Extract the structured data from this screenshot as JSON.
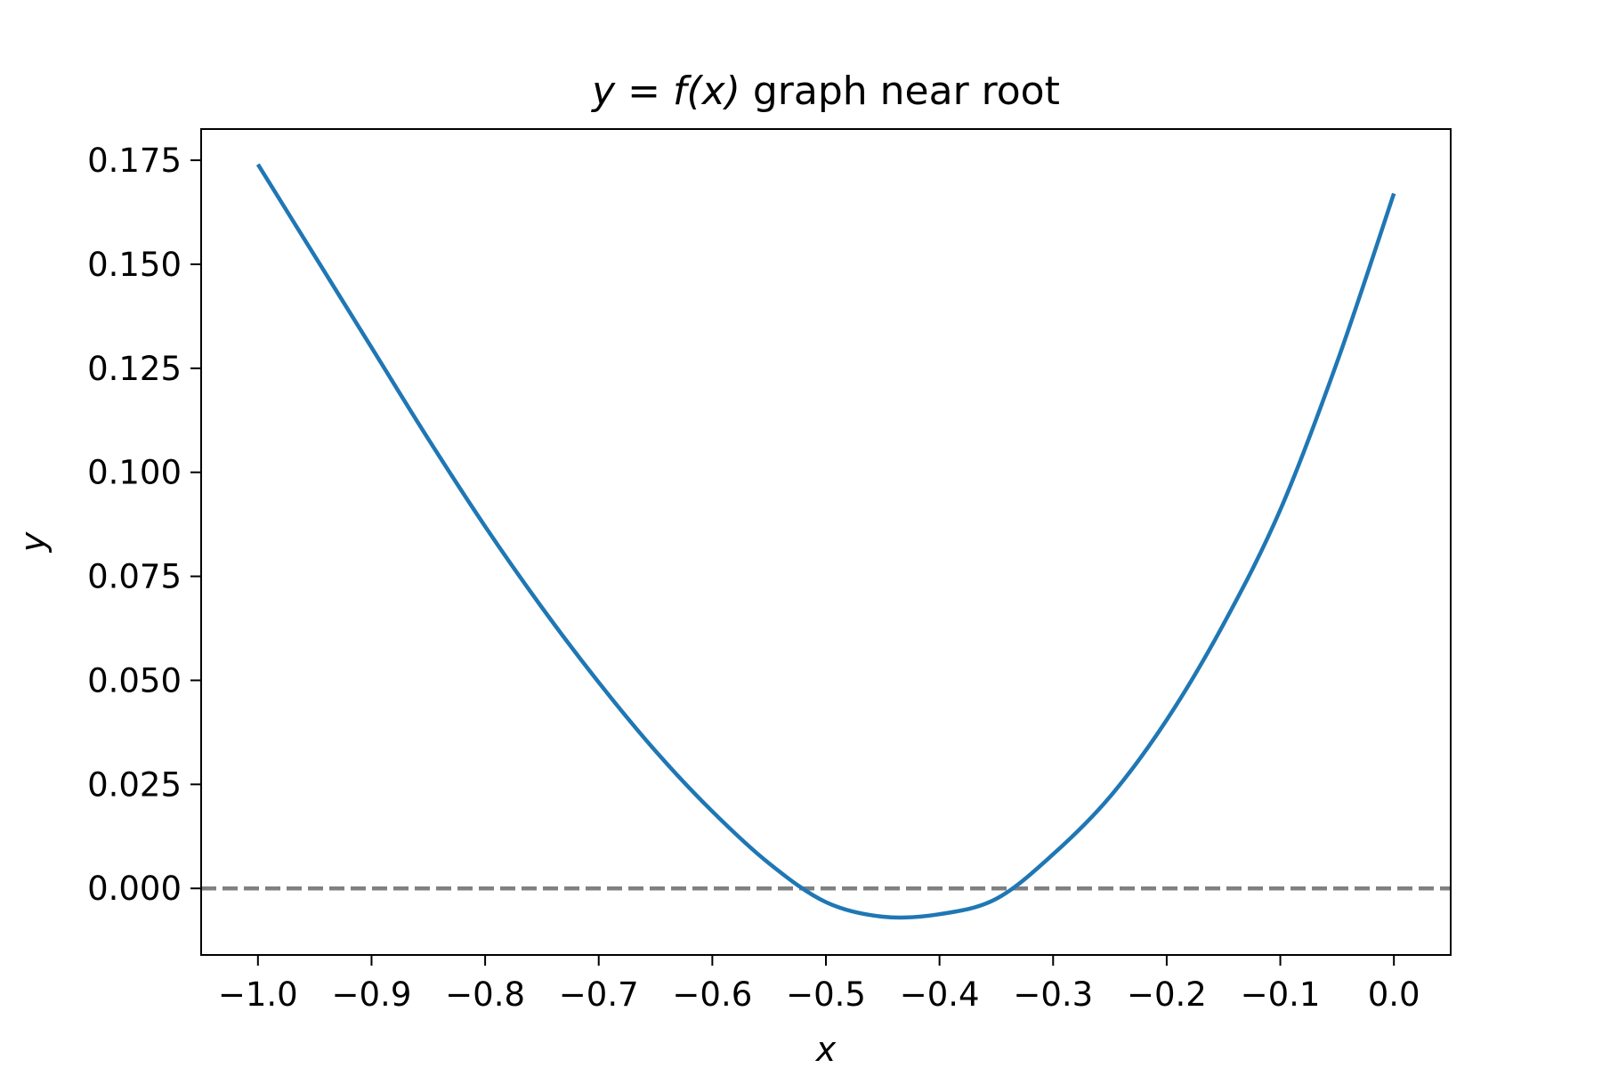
{
  "chart_data": {
    "type": "line",
    "title_math": "y = f(x)",
    "title_text": " graph near root",
    "xlabel": "x",
    "ylabel": "y",
    "xlim": [
      -1.05,
      0.05
    ],
    "ylim": [
      -0.016,
      0.1825
    ],
    "x_ticks": [
      -1.0,
      -0.9,
      -0.8,
      -0.7,
      -0.6,
      -0.5,
      -0.4,
      -0.3,
      -0.2,
      -0.1,
      0.0
    ],
    "x_tick_labels": [
      "−1.0",
      "−0.9",
      "−0.8",
      "−0.7",
      "−0.6",
      "−0.5",
      "−0.4",
      "−0.3",
      "−0.2",
      "−0.1",
      "0.0"
    ],
    "y_ticks": [
      0.0,
      0.025,
      0.05,
      0.075,
      0.1,
      0.125,
      0.15,
      0.175
    ],
    "y_tick_labels": [
      "0.000",
      "0.025",
      "0.050",
      "0.075",
      "0.100",
      "0.125",
      "0.150",
      "0.175"
    ],
    "grid": false,
    "series": [
      {
        "color": "#1f77b4",
        "x": [
          -1.0,
          -0.95,
          -0.9,
          -0.85,
          -0.8,
          -0.75,
          -0.7,
          -0.65,
          -0.6,
          -0.55,
          -0.5,
          -0.45,
          -0.4,
          -0.35,
          -0.3,
          -0.25,
          -0.2,
          -0.15,
          -0.1,
          -0.05,
          0.0
        ],
        "y": [
          0.174,
          0.152,
          0.13,
          0.108,
          0.087,
          0.0675,
          0.0495,
          0.033,
          0.0185,
          0.006,
          -0.0033,
          -0.0068,
          -0.0062,
          -0.0025,
          0.0082,
          0.022,
          0.0405,
          0.0635,
          0.091,
          0.1265,
          0.167
        ]
      }
    ],
    "reference_line": {
      "y": 0.0,
      "color": "#808080",
      "style": "dashed"
    }
  }
}
